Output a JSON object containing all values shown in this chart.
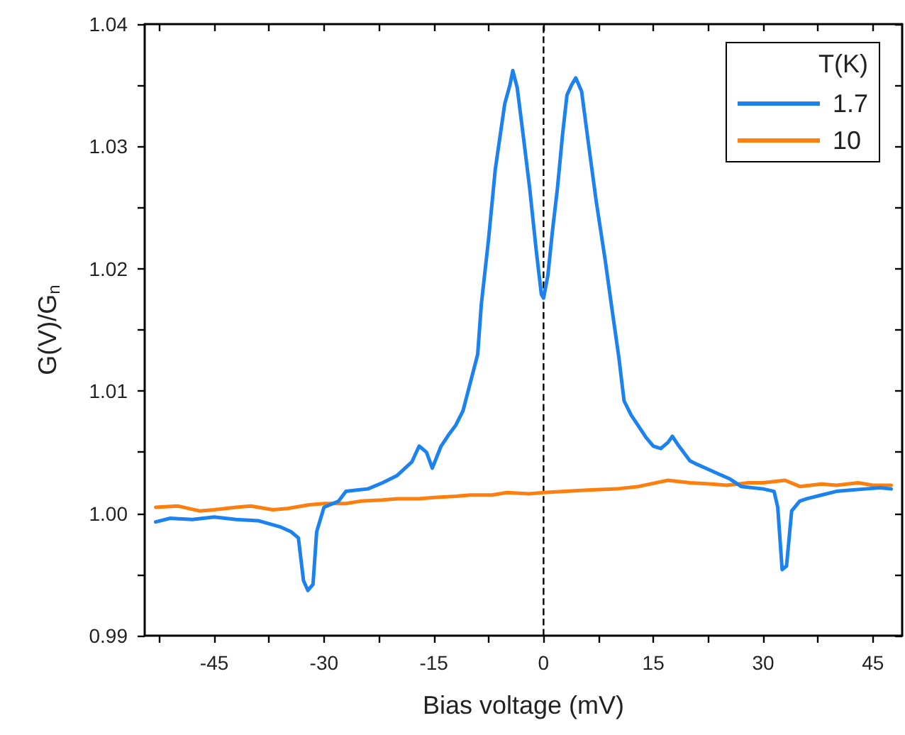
{
  "chart_data": {
    "type": "line",
    "xlabel": "Bias voltage (mV)",
    "ylabel": "G(V)/G$_{n}$",
    "legend_title": "T(K)",
    "legend": "top right",
    "grid": false,
    "marker": "none",
    "line_style": "solid",
    "xlim": [
      -54.5,
      49
    ],
    "ylim": [
      0.99,
      1.04
    ],
    "xticks": [
      {
        "value": -52.5,
        "label": null
      },
      -45,
      {
        "value": -37.5,
        "label": null
      },
      -30,
      {
        "value": -22.5,
        "label": null
      },
      -15,
      {
        "value": -7.5,
        "label": null
      },
      0,
      {
        "value": 7.5,
        "label": null
      },
      15,
      {
        "value": 22.5,
        "label": null
      },
      30,
      {
        "value": 37.5,
        "label": null
      },
      45
    ],
    "yticks": [
      {
        "value": 0.99,
        "label": "0.99"
      },
      {
        "value": 0.995,
        "label": null
      },
      {
        "value": 1.0,
        "label": "1.00"
      },
      {
        "value": 1.005,
        "label": null
      },
      {
        "value": 1.01,
        "label": "1.01"
      },
      {
        "value": 1.015,
        "label": null
      },
      {
        "value": 1.02,
        "label": "1.02"
      },
      {
        "value": 1.025,
        "label": null
      },
      {
        "value": 1.03,
        "label": "1.03"
      },
      {
        "value": 1.035,
        "label": null
      },
      {
        "value": 1.04,
        "label": "1.04"
      }
    ],
    "ref_lines": [
      {
        "axis": "x",
        "value": 0,
        "color": "#000000",
        "line_style": "dashed"
      }
    ],
    "series": [
      {
        "name": "1.7",
        "color": "#1b82f0",
        "x": [
          -53,
          -51,
          -48,
          -45,
          -42,
          -39,
          -36,
          -34.5,
          -33.5,
          -32.8,
          -32.2,
          -31.5,
          -31,
          -30,
          -28,
          -27,
          -24,
          -22,
          -20,
          -18,
          -17,
          -16,
          -15.2,
          -14,
          -13,
          -12,
          -11,
          -10,
          -9,
          -8.5,
          -7.5,
          -6.6,
          -5.3,
          -4.6,
          -4.2,
          -3.6,
          -2.8,
          -1.9,
          -1,
          -0.3,
          0,
          0.6,
          1.2,
          1.9,
          2.6,
          3.2,
          3.8,
          4.4,
          5.2,
          6.1,
          7.2,
          8.4,
          9.4,
          10.3,
          11,
          12,
          12.9,
          14,
          15,
          16,
          17,
          17.6,
          18.5,
          20,
          21,
          22.5,
          24,
          25.5,
          27,
          30,
          31.5,
          32,
          32.6,
          33.2,
          33.9,
          35,
          36,
          38,
          40,
          42,
          44,
          46,
          47.5
        ],
        "values": [
          0.9993,
          0.9996,
          0.9995,
          0.9997,
          0.9995,
          0.9994,
          0.9989,
          0.9985,
          0.998,
          0.9945,
          0.9937,
          0.9942,
          0.9985,
          1.0005,
          1.001,
          1.0018,
          1.002,
          1.0025,
          1.0031,
          1.0042,
          1.0055,
          1.005,
          1.0037,
          1.0055,
          1.0064,
          1.0072,
          1.0084,
          1.0107,
          1.013,
          1.0171,
          1.0225,
          1.0281,
          1.0335,
          1.035,
          1.0362,
          1.0348,
          1.031,
          1.0266,
          1.0215,
          1.0179,
          1.0176,
          1.0195,
          1.023,
          1.0266,
          1.031,
          1.0342,
          1.035,
          1.0356,
          1.0345,
          1.0304,
          1.0255,
          1.0208,
          1.0165,
          1.0127,
          1.0092,
          1.008,
          1.0072,
          1.0062,
          1.0055,
          1.0053,
          1.0058,
          1.0063,
          1.0055,
          1.0043,
          1.004,
          1.0036,
          1.0032,
          1.0028,
          1.0022,
          1.002,
          1.0018,
          1.0005,
          0.9954,
          0.9957,
          1.0002,
          1.001,
          1.0012,
          1.0015,
          1.0018,
          1.0019,
          1.002,
          1.0021,
          1.002
        ]
      },
      {
        "name": "10",
        "color": "#ff7f0e",
        "x": [
          -53,
          -50,
          -47,
          -45,
          -42,
          -40,
          -37,
          -35,
          -32,
          -30,
          -27,
          -25,
          -22,
          -20,
          -17,
          -15,
          -12,
          -10,
          -7,
          -5,
          -2,
          0,
          3,
          6,
          10,
          13,
          17,
          20,
          23,
          25,
          28,
          30,
          33,
          35,
          38,
          40,
          43,
          45,
          47.5
        ],
        "values": [
          1.0005,
          1.0006,
          1.0002,
          1.0003,
          1.0005,
          1.0006,
          1.0003,
          1.0004,
          1.0007,
          1.0008,
          1.0008,
          1.001,
          1.0011,
          1.0012,
          1.0012,
          1.0013,
          1.0014,
          1.0015,
          1.0015,
          1.0017,
          1.0016,
          1.0017,
          1.0018,
          1.0019,
          1.002,
          1.0022,
          1.0027,
          1.0025,
          1.0024,
          1.0023,
          1.0025,
          1.0025,
          1.0027,
          1.0022,
          1.0024,
          1.0023,
          1.0025,
          1.0023,
          1.0023
        ]
      }
    ]
  }
}
